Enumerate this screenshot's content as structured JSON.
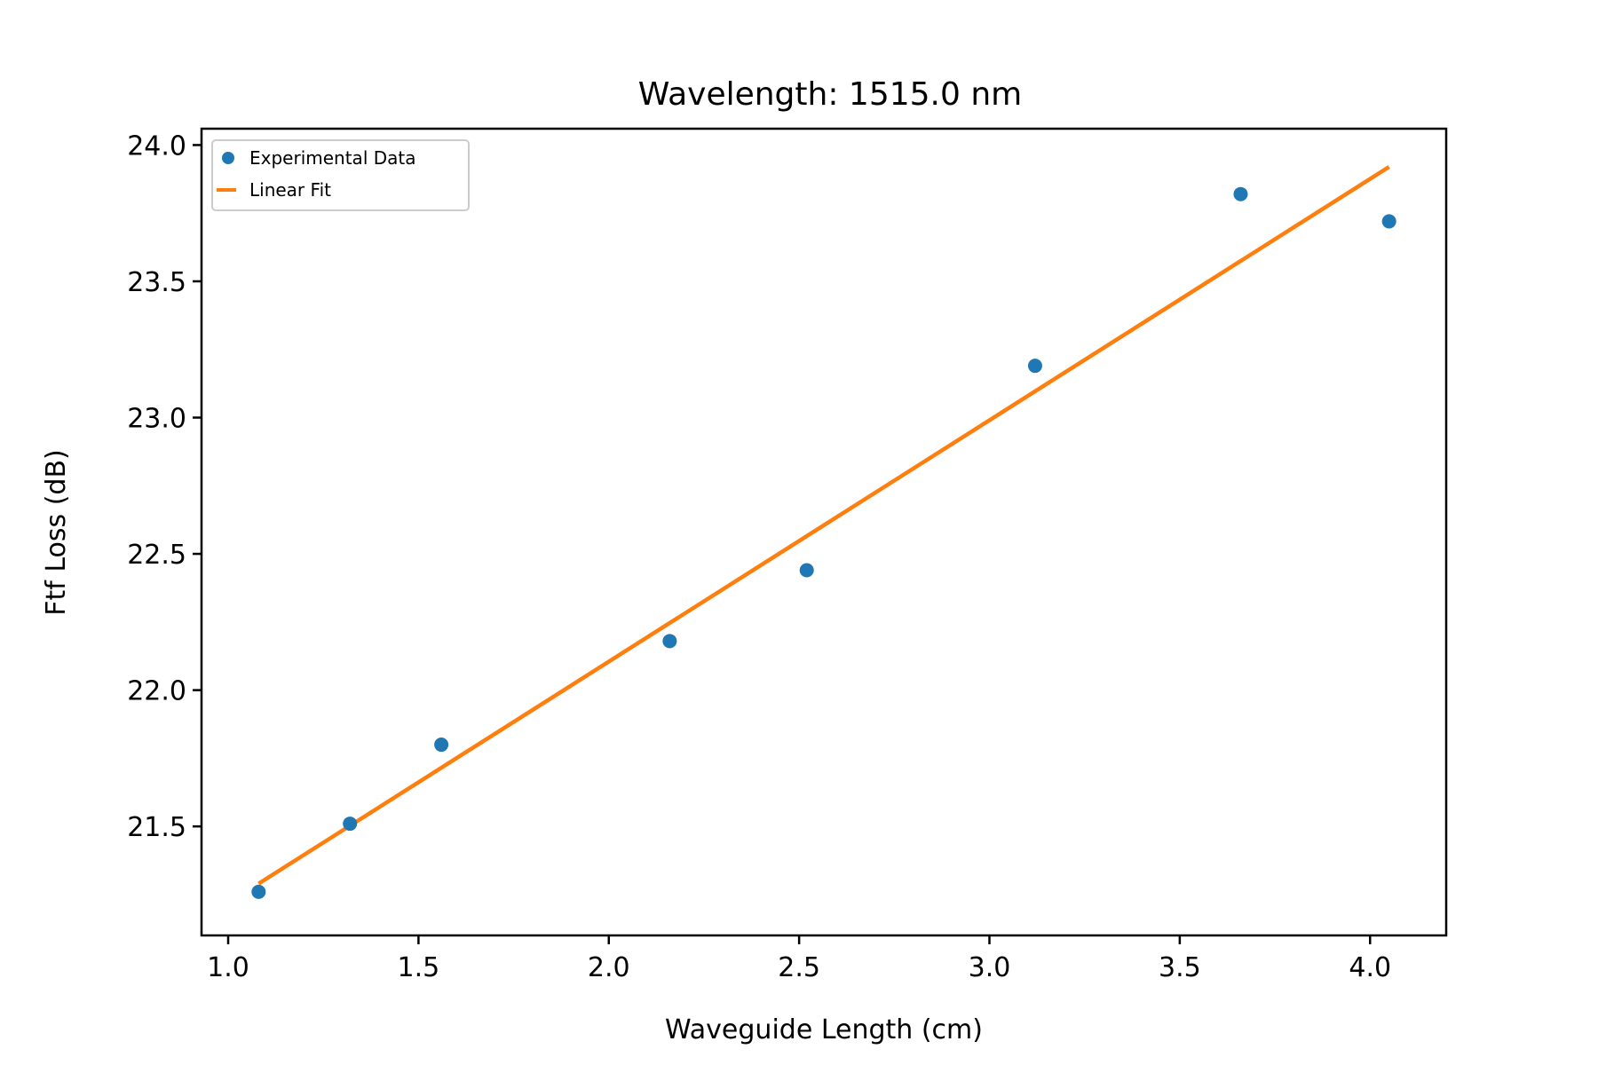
{
  "chart_data": {
    "type": "scatter",
    "title": "Wavelength: 1515.0 nm",
    "xlabel": "Waveguide Length (cm)",
    "ylabel": "Ftf Loss (dB)",
    "xlim": [
      0.93,
      4.2
    ],
    "ylim": [
      21.1,
      24.06
    ],
    "x_ticks": [
      1.0,
      1.5,
      2.0,
      2.5,
      3.0,
      3.5,
      4.0
    ],
    "x_tick_labels": [
      "1.0",
      "1.5",
      "2.0",
      "2.5",
      "3.0",
      "3.5",
      "4.0"
    ],
    "y_ticks": [
      21.5,
      22.0,
      22.5,
      23.0,
      23.5,
      24.0
    ],
    "y_tick_labels": [
      "21.5",
      "22.0",
      "22.5",
      "23.0",
      "23.5",
      "24.0"
    ],
    "grid": false,
    "legend_position": "top-left",
    "series": [
      {
        "name": "Experimental Data",
        "kind": "scatter",
        "color": "#1f77b4",
        "x": [
          1.08,
          1.32,
          1.56,
          2.16,
          2.52,
          3.12,
          3.66,
          4.05
        ],
        "y": [
          21.26,
          21.51,
          21.8,
          22.18,
          22.44,
          23.19,
          23.82,
          23.72
        ]
      },
      {
        "name": "Linear Fit",
        "kind": "line",
        "color": "#ff7f0e",
        "x": [
          1.08,
          4.05
        ],
        "y": [
          21.29,
          23.92
        ]
      }
    ]
  }
}
